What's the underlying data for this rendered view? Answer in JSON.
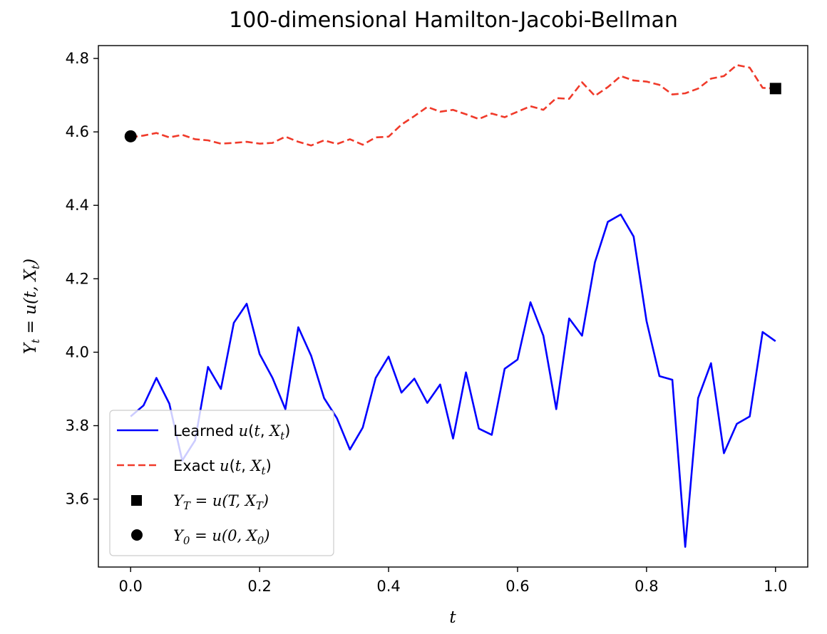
{
  "chart_data": {
    "type": "line",
    "title": "100-dimensional Hamilton-Jacobi-Bellman",
    "xlabel": "t",
    "ylabel": "Y_t = u(t, X_t)",
    "xlim": [
      -0.05,
      1.05
    ],
    "ylim": [
      3.415,
      4.835
    ],
    "x_ticks": [
      0.0,
      0.2,
      0.4,
      0.6,
      0.8,
      1.0
    ],
    "x_tick_labels": [
      "0.0",
      "0.2",
      "0.4",
      "0.6",
      "0.8",
      "1.0"
    ],
    "y_ticks": [
      3.6,
      3.8,
      4.0,
      4.2,
      4.4,
      4.6,
      4.8
    ],
    "y_tick_labels": [
      "3.6",
      "3.8",
      "4.0",
      "4.2",
      "4.4",
      "4.6",
      "4.8"
    ],
    "grid": false,
    "legend_position": "lower-left",
    "x": [
      0.0,
      0.02,
      0.04,
      0.06,
      0.08,
      0.1,
      0.12,
      0.14,
      0.16,
      0.18,
      0.2,
      0.22,
      0.24,
      0.26,
      0.28,
      0.3,
      0.32,
      0.34,
      0.36,
      0.38,
      0.4,
      0.42,
      0.44,
      0.46,
      0.48,
      0.5,
      0.52,
      0.54,
      0.56,
      0.58,
      0.6,
      0.62,
      0.64,
      0.66,
      0.68,
      0.7,
      0.72,
      0.74,
      0.76,
      0.78,
      0.8,
      0.82,
      0.84,
      0.86,
      0.88,
      0.9,
      0.92,
      0.94,
      0.96,
      0.98,
      1.0
    ],
    "series": [
      {
        "name": "Learned u(t, X_t)",
        "style": "solid",
        "color": "#0000ff",
        "values": [
          3.825,
          3.855,
          3.93,
          3.86,
          3.705,
          3.76,
          3.96,
          3.9,
          4.08,
          4.132,
          3.995,
          3.93,
          3.845,
          4.068,
          3.99,
          3.875,
          3.82,
          3.735,
          3.795,
          3.93,
          3.988,
          3.89,
          3.928,
          3.862,
          3.912,
          3.765,
          3.945,
          3.792,
          3.775,
          3.955,
          3.98,
          4.136,
          4.045,
          3.845,
          4.092,
          4.045,
          4.245,
          4.355,
          4.375,
          4.315,
          4.085,
          3.935,
          3.925,
          3.47,
          3.875,
          3.97,
          3.725,
          3.805,
          3.825,
          4.055,
          4.03
        ]
      },
      {
        "name": "Exact u(t, X_t)",
        "style": "dashed",
        "color": "#f03a2a",
        "values": [
          4.585,
          4.59,
          4.597,
          4.585,
          4.592,
          4.58,
          4.577,
          4.568,
          4.57,
          4.573,
          4.568,
          4.57,
          4.587,
          4.573,
          4.563,
          4.577,
          4.567,
          4.58,
          4.565,
          4.585,
          4.587,
          4.62,
          4.643,
          4.668,
          4.655,
          4.66,
          4.648,
          4.635,
          4.65,
          4.64,
          4.655,
          4.67,
          4.66,
          4.692,
          4.69,
          4.735,
          4.698,
          4.722,
          4.752,
          4.74,
          4.737,
          4.728,
          4.702,
          4.705,
          4.718,
          4.745,
          4.752,
          4.782,
          4.775,
          4.72,
          4.718
        ]
      }
    ],
    "markers": [
      {
        "name": "Y_T = u(T, X_T)",
        "shape": "square",
        "color": "#000000",
        "x": 1.0,
        "y": 4.718
      },
      {
        "name": "Y_0 = u(0, X_0)",
        "shape": "circle",
        "color": "#000000",
        "x": 0.0,
        "y": 4.588
      }
    ],
    "legend": [
      {
        "kind": "line-solid",
        "label": "Learned u(t, X_t)"
      },
      {
        "kind": "line-dashed",
        "label": "Exact u(t, X_t)"
      },
      {
        "kind": "square",
        "label": "Y_T = u(T, X_T)"
      },
      {
        "kind": "circle",
        "label": "Y_0 = u(0, X_0)"
      }
    ]
  }
}
